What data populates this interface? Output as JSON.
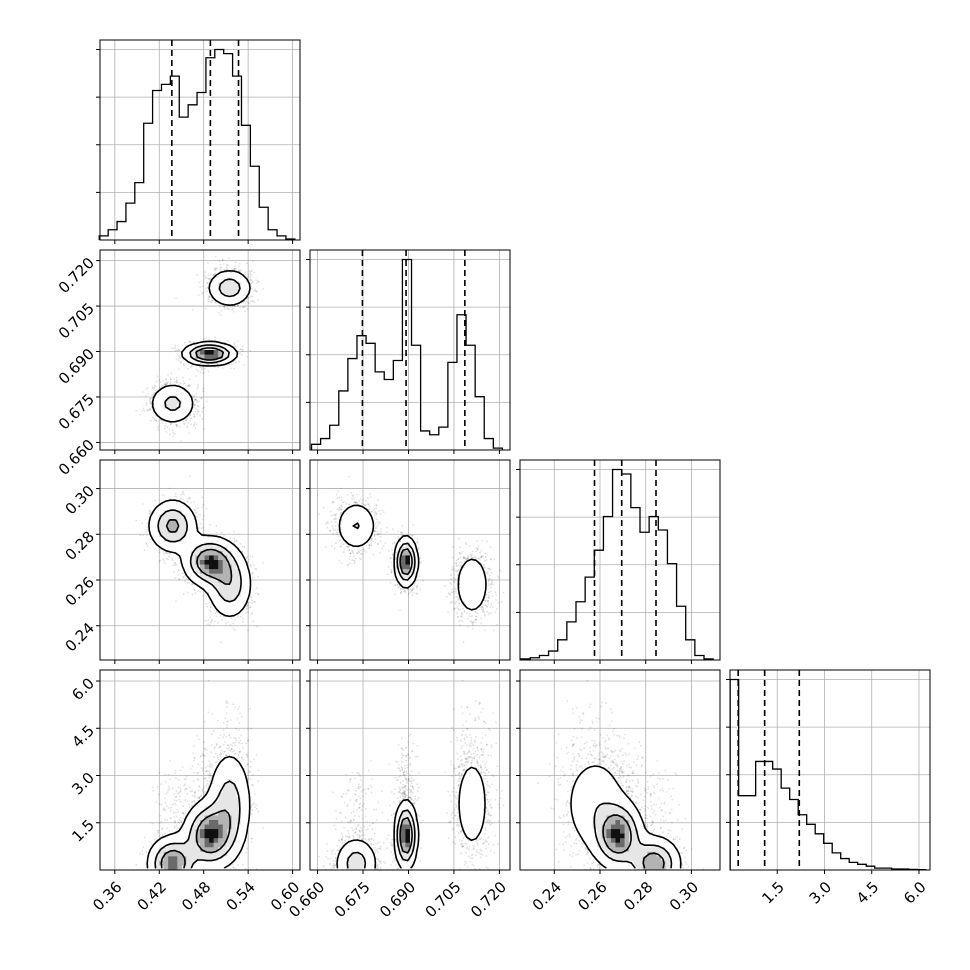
{
  "chart_data": {
    "type": "corner",
    "title": "",
    "grid": true,
    "colors": {
      "axis": "#000000",
      "grid": "#b0b0b0",
      "hist": "#000000",
      "scatter": "#000000",
      "background": "#ffffff"
    },
    "parameters": [
      {
        "index": 0,
        "ticks": [
          0.36,
          0.42,
          0.48,
          0.54,
          0.6
        ],
        "tick_labels": [
          "0.36",
          "0.42",
          "0.48",
          "0.54",
          "0.60"
        ],
        "range": [
          0.34,
          0.61
        ]
      },
      {
        "index": 1,
        "ticks": [
          0.66,
          0.675,
          0.69,
          0.705,
          0.72
        ],
        "tick_labels": [
          "0.660",
          "0.675",
          "0.690",
          "0.705",
          "0.720"
        ],
        "range": [
          0.6575,
          0.7235
        ]
      },
      {
        "index": 2,
        "ticks": [
          0.24,
          0.26,
          0.28,
          0.3
        ],
        "tick_labels": [
          "0.24",
          "0.26",
          "0.28",
          "0.30"
        ],
        "range": [
          0.225,
          0.3125
        ]
      },
      {
        "index": 3,
        "ticks": [
          1.5,
          3.0,
          4.5,
          6.0
        ],
        "tick_labels": [
          "1.5",
          "3.0",
          "4.5",
          "6.0"
        ],
        "range": [
          0.0,
          6.35
        ]
      }
    ],
    "quantiles": [
      [
        0.437,
        0.489,
        0.527
      ],
      [
        0.6748,
        0.6892,
        0.7086
      ],
      [
        0.2576,
        0.2695,
        0.2845
      ],
      [
        0.26,
        1.1,
        2.2
      ]
    ],
    "histograms": [
      {
        "param": 0,
        "bin_centers": [
          0.345,
          0.357,
          0.369,
          0.381,
          0.393,
          0.405,
          0.417,
          0.429,
          0.441,
          0.453,
          0.465,
          0.477,
          0.489,
          0.501,
          0.513,
          0.525,
          0.537,
          0.549,
          0.561,
          0.573,
          0.585,
          0.597
        ],
        "counts": [
          0.02,
          0.05,
          0.09,
          0.18,
          0.28,
          0.57,
          0.73,
          0.76,
          0.8,
          0.6,
          0.66,
          0.72,
          0.89,
          0.93,
          0.91,
          0.8,
          0.56,
          0.36,
          0.16,
          0.05,
          0.02,
          0.005
        ]
      },
      {
        "param": 1,
        "bin_centers": [
          0.6595,
          0.6625,
          0.6655,
          0.6685,
          0.6715,
          0.6745,
          0.6775,
          0.6805,
          0.6835,
          0.6865,
          0.6895,
          0.6925,
          0.6955,
          0.6985,
          0.7015,
          0.7045,
          0.7075,
          0.7105,
          0.7135,
          0.7165,
          0.7195
        ],
        "counts": [
          0.03,
          0.06,
          0.13,
          0.31,
          0.48,
          0.6,
          0.56,
          0.41,
          0.37,
          0.47,
          1.0,
          0.55,
          0.1,
          0.08,
          0.12,
          0.46,
          0.71,
          0.55,
          0.28,
          0.06,
          0.01
        ]
      },
      {
        "param": 2,
        "bin_centers": [
          0.2275,
          0.2315,
          0.2355,
          0.2395,
          0.2435,
          0.2475,
          0.2515,
          0.2555,
          0.2595,
          0.2635,
          0.2675,
          0.2715,
          0.2755,
          0.2795,
          0.2835,
          0.2875,
          0.2915,
          0.2955,
          0.2995,
          0.3035,
          0.3075
        ],
        "counts": [
          0.005,
          0.01,
          0.02,
          0.04,
          0.09,
          0.17,
          0.26,
          0.37,
          0.49,
          0.64,
          0.85,
          0.83,
          0.68,
          0.57,
          0.64,
          0.58,
          0.43,
          0.24,
          0.09,
          0.02,
          0.005
        ]
      },
      {
        "param": 3,
        "bin_centers": [
          0.14,
          0.41,
          0.68,
          0.95,
          1.22,
          1.49,
          1.76,
          2.03,
          2.3,
          2.57,
          2.84,
          3.11,
          3.38,
          3.65,
          3.92,
          4.19,
          4.46,
          4.73,
          5.0,
          5.27,
          5.54,
          5.81,
          6.08
        ],
        "counts": [
          1.0,
          0.39,
          0.39,
          0.57,
          0.57,
          0.53,
          0.43,
          0.37,
          0.29,
          0.24,
          0.19,
          0.14,
          0.09,
          0.06,
          0.04,
          0.03,
          0.02,
          0.01,
          0.01,
          0.005,
          0.005,
          0.003,
          0.002
        ]
      }
    ],
    "density_modes": [
      {
        "x": 0.438,
        "y": 0.6728,
        "z": 0.2837,
        "w": 0.2,
        "sx": 0.017,
        "sy": 0.00375,
        "sz": 0.006,
        "sw": 0.45,
        "weight": 0.3
      },
      {
        "x": 0.488,
        "y": 0.6892,
        "z": 0.268,
        "w": 1.1,
        "sx": 0.018,
        "sy": 0.0019,
        "sz": 0.0055,
        "sw": 0.55,
        "weight": 0.4
      },
      {
        "x": 0.515,
        "y": 0.711,
        "z": 0.258,
        "w": 2.1,
        "sx": 0.016,
        "sy": 0.0033,
        "sz": 0.008,
        "sw": 0.9,
        "weight": 0.3
      }
    ]
  }
}
